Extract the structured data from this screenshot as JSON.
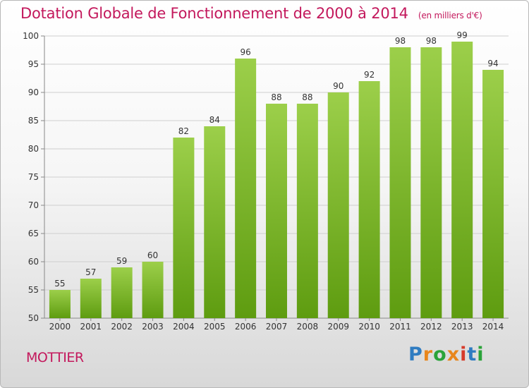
{
  "chart_data": {
    "type": "bar",
    "title": "Dotation Globale de Fonctionnement de 2000 à 2014",
    "subtitle": "(en milliers d'€)",
    "xlabel": "",
    "ylabel": "",
    "categories": [
      "2000",
      "2001",
      "2002",
      "2003",
      "2004",
      "2005",
      "2006",
      "2007",
      "2008",
      "2009",
      "2010",
      "2011",
      "2012",
      "2013",
      "2014"
    ],
    "values": [
      55,
      57,
      59,
      60,
      82,
      84,
      96,
      88,
      88,
      90,
      92,
      98,
      98,
      99,
      94
    ],
    "ylim": [
      50,
      100
    ],
    "yticks": [
      50,
      55,
      60,
      65,
      70,
      75,
      80,
      85,
      90,
      95,
      100
    ],
    "grid": true,
    "legend": "none",
    "bar_color_top": "#9ccf4a",
    "bar_color_bottom": "#5e9c10"
  },
  "footer": {
    "commune": "MOTTIER",
    "logo_letters": [
      "P",
      "r",
      "o",
      "x",
      "i",
      "t",
      "i"
    ]
  }
}
